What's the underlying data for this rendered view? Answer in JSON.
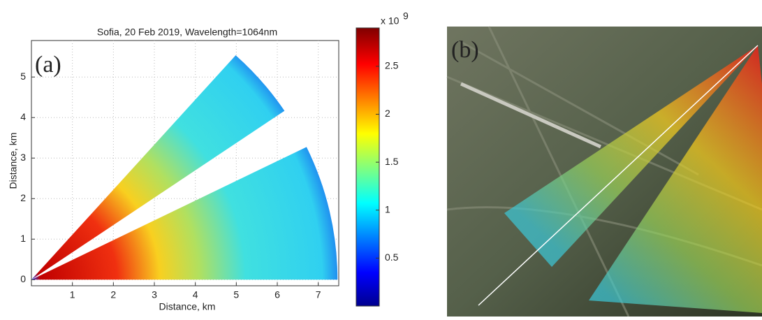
{
  "chart_data": {
    "type": "polar-sector",
    "title": "Sofia, 20 Feb 2019, Wavelength=1064nm",
    "panel_label": "(a)",
    "xlabel": "Distance, km",
    "ylabel": "Distance, km",
    "xlim": [
      0,
      7.5
    ],
    "xticks": [
      1,
      2,
      3,
      4,
      5,
      6,
      7
    ],
    "ylim": [
      -0.15,
      5.9
    ],
    "yticks": [
      0,
      1,
      2,
      3,
      4,
      5
    ],
    "grid": true,
    "sectors": [
      {
        "angle_start": 34,
        "angle_end": 48,
        "radius": 7.45
      },
      {
        "angle_start": 0,
        "angle_end": 26,
        "radius": 7.47
      }
    ],
    "colorbar": {
      "clim": [
        0,
        2.9
      ],
      "ticks": [
        0.5,
        1,
        1.5,
        2,
        2.5
      ],
      "multiplier": "x 10",
      "exponent": "9",
      "colormap": "jet"
    }
  },
  "map": {
    "panel_label": "(b)"
  }
}
